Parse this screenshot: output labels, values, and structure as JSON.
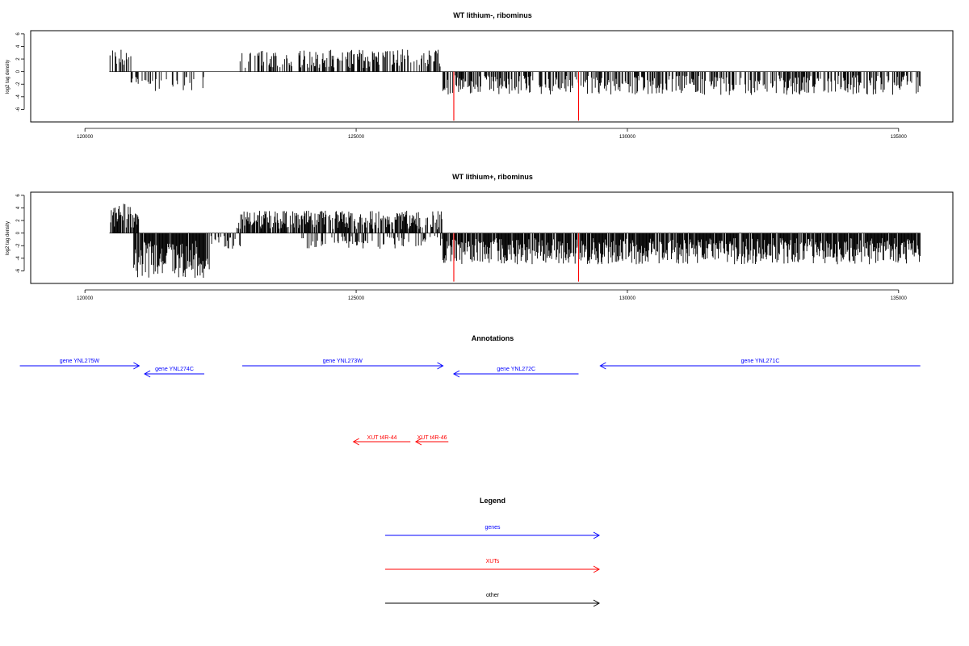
{
  "colors": {
    "bars": "#000000",
    "highlight": "#ff0000",
    "genes": "#0000ff",
    "xuts": "#ff0000",
    "other": "#000000",
    "axis": "#000000"
  },
  "chart_data": [
    {
      "type": "bar",
      "title": "WT lithium-, ribominus",
      "xlabel": "",
      "ylabel": "log2 tag density",
      "xlim": [
        119000,
        136000
      ],
      "ylim": [
        -8,
        6.5
      ],
      "xticks": [
        120000,
        125000,
        130000,
        135000
      ],
      "xtick_labels": [
        "120000",
        "125000",
        "130000",
        "135000"
      ],
      "yticks": [
        -6,
        -4,
        -2,
        0,
        2,
        4,
        6
      ],
      "ytick_labels": [
        "-6",
        "-4",
        "-2",
        "0",
        "2",
        "4",
        "6"
      ],
      "baseline": [
        120450,
        135400
      ],
      "density_profile": [
        {
          "start": 120450,
          "end": 120850,
          "sign": 1,
          "mean": 2.4,
          "fill": 0.5
        },
        {
          "start": 120850,
          "end": 121250,
          "sign": -1,
          "mean": 1.5,
          "fill": 0.4
        },
        {
          "start": 121250,
          "end": 122200,
          "sign": -1,
          "mean": 2.1,
          "fill": 0.25
        },
        {
          "start": 122800,
          "end": 123200,
          "sign": 1,
          "mean": 2.0,
          "fill": 0.35
        },
        {
          "start": 123200,
          "end": 126550,
          "sign": 1,
          "mean": 2.3,
          "fill": 0.55
        },
        {
          "start": 126600,
          "end": 135400,
          "sign": -1,
          "mean": 2.4,
          "fill": 0.55
        }
      ],
      "highlights": [
        {
          "x": 126800,
          "value": -7.8
        },
        {
          "x": 129100,
          "value": -7.8
        }
      ]
    },
    {
      "type": "bar",
      "title": "WT lithium+, ribominus",
      "xlabel": "",
      "ylabel": "log2 tag density",
      "xlim": [
        119000,
        136000
      ],
      "ylim": [
        -8,
        6.5
      ],
      "xticks": [
        120000,
        125000,
        130000,
        135000
      ],
      "xtick_labels": [
        "120000",
        "125000",
        "130000",
        "135000"
      ],
      "yticks": [
        -6,
        -4,
        -2,
        0,
        2,
        4,
        6
      ],
      "ytick_labels": [
        "-6",
        "-4",
        "-2",
        "0",
        "2",
        "4",
        "6"
      ],
      "baseline": [
        120450,
        135400
      ],
      "density_profile": [
        {
          "start": 120450,
          "end": 121000,
          "sign": 1,
          "mean": 3.3,
          "fill": 0.85
        },
        {
          "start": 120900,
          "end": 122300,
          "sign": -1,
          "mean": 4.6,
          "fill": 0.9
        },
        {
          "start": 122300,
          "end": 122900,
          "sign": -1,
          "mean": 1.8,
          "fill": 0.4
        },
        {
          "start": 122800,
          "end": 126600,
          "sign": 1,
          "mean": 2.3,
          "fill": 0.8
        },
        {
          "start": 124000,
          "end": 126600,
          "sign": -1,
          "mean": 1.6,
          "fill": 0.35
        },
        {
          "start": 126600,
          "end": 135400,
          "sign": -1,
          "mean": 3.2,
          "fill": 0.9
        }
      ],
      "highlights": [
        {
          "x": 126800,
          "value": -7.7
        },
        {
          "x": 129100,
          "value": -7.7
        }
      ]
    }
  ],
  "annotations": {
    "title": "Annotations",
    "genes": [
      {
        "label": "gene YNL275W",
        "start": 118800,
        "end": 121000,
        "strand": "+"
      },
      {
        "label": "gene YNL274C",
        "start": 121100,
        "end": 122200,
        "strand": "-"
      },
      {
        "label": "gene YNL273W",
        "start": 122900,
        "end": 126600,
        "strand": "+"
      },
      {
        "label": "gene YNL272C",
        "start": 126800,
        "end": 129100,
        "strand": "-"
      },
      {
        "label": "gene YNL271C",
        "start": 129500,
        "end": 135400,
        "strand": "-"
      }
    ],
    "xuts": [
      {
        "label": "XUT t4R-44",
        "start": 124950,
        "end": 126000,
        "strand": "-"
      },
      {
        "label": "XUT t4R-46",
        "start": 126100,
        "end": 126700,
        "strand": "-"
      }
    ]
  },
  "legend": {
    "title": "Legend",
    "items": [
      {
        "label": "genes",
        "color_key": "genes"
      },
      {
        "label": "XUTs",
        "color_key": "xuts"
      },
      {
        "label": "other",
        "color_key": "other"
      }
    ]
  }
}
